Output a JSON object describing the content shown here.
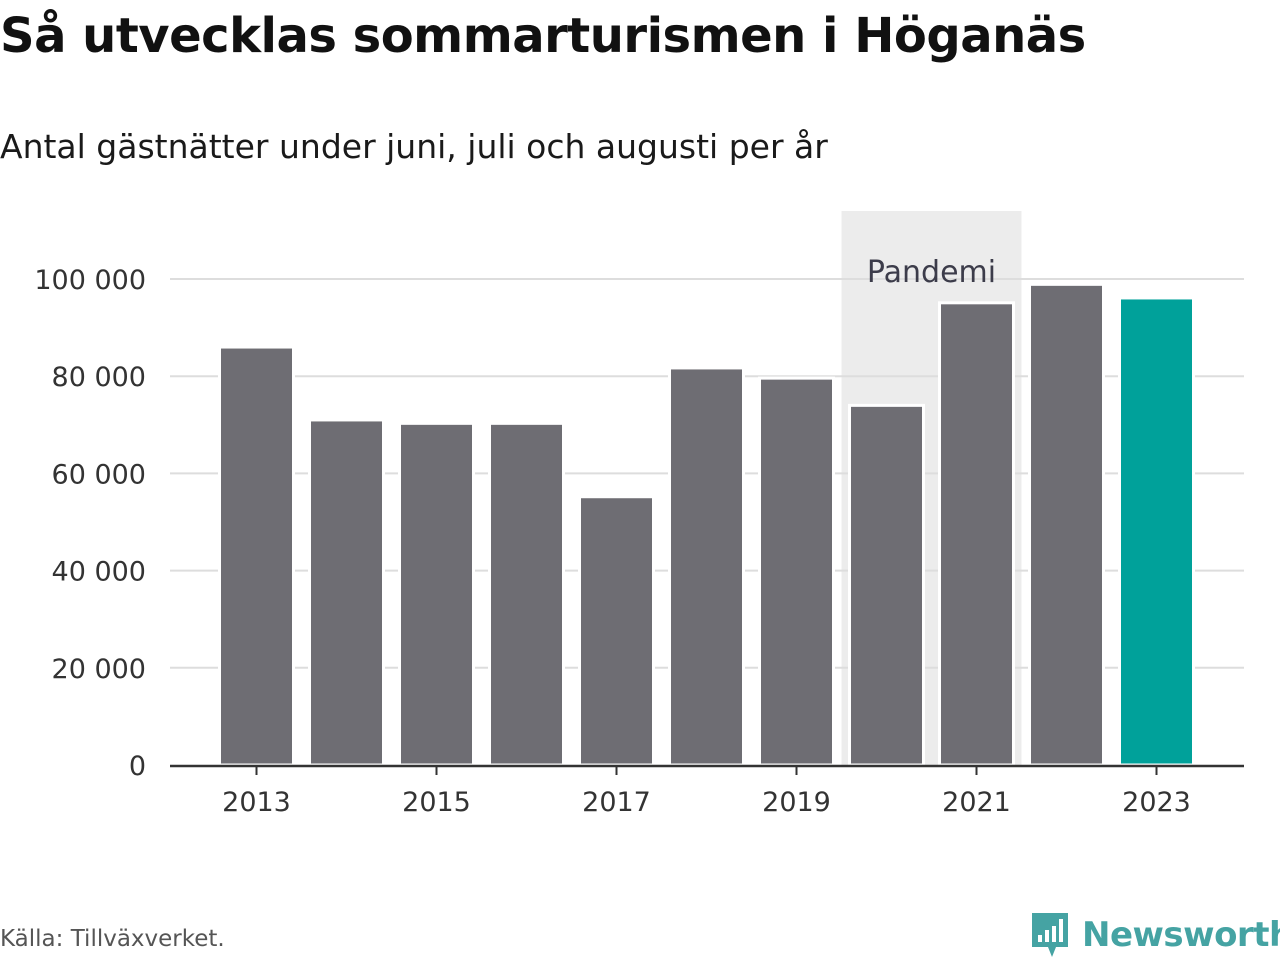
{
  "header": {
    "title": "Så utvecklas sommarturismen i Höganäs",
    "subtitle": "Antal gästnätter under juni, juli och augusti per år"
  },
  "footer": {
    "source": "Källa: Tillväxverket.",
    "brand": "Newsworthy"
  },
  "colors": {
    "bar": "#6e6d73",
    "highlight": "#00a19a",
    "pandemic_band": "#ececec",
    "grid": "#dddddd",
    "axis": "#333333",
    "brand": "#45a3a3"
  },
  "chart_data": {
    "type": "bar",
    "title": "Så utvecklas sommarturismen i Höganäs",
    "subtitle": "Antal gästnätter under juni, juli och augusti per år",
    "categories": [
      2013,
      2014,
      2015,
      2016,
      2017,
      2018,
      2019,
      2020,
      2021,
      2022,
      2023
    ],
    "values": [
      86000,
      71000,
      70300,
      70300,
      55200,
      81700,
      79600,
      74000,
      95100,
      98900,
      96100
    ],
    "highlight_category": 2023,
    "x_tick_labels": [
      "2013",
      "2015",
      "2017",
      "2019",
      "2021",
      "2023"
    ],
    "y_ticks": [
      0,
      20000,
      40000,
      60000,
      80000,
      100000
    ],
    "y_tick_labels": [
      "0",
      "20 000",
      "40 000",
      "60 000",
      "80 000",
      "100 000"
    ],
    "ylim": [
      0,
      100000
    ],
    "grid": true,
    "annotation": {
      "label": "Pandemi",
      "from": 2020,
      "to": 2021
    }
  }
}
